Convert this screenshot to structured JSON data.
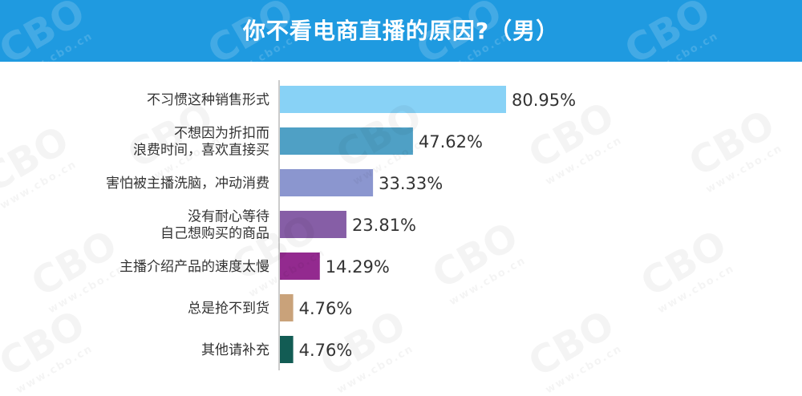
{
  "chart_data": {
    "type": "bar",
    "orientation": "horizontal",
    "title": "你不看电商直播的原因?（男）",
    "categories": [
      [
        "不习惯这种销售形式"
      ],
      [
        "不想因为折扣而",
        "浪费时间，喜欢直接买"
      ],
      [
        "害怕被主播洗脑，冲动消费"
      ],
      [
        "没有耐心等待",
        "自己想购买的商品"
      ],
      [
        "主播介绍产品的速度太慢"
      ],
      [
        "总是抢不到货"
      ],
      [
        "其他请补充"
      ]
    ],
    "values": [
      80.95,
      47.62,
      33.33,
      23.81,
      14.29,
      4.76,
      4.76
    ],
    "value_labels": [
      "80.95%",
      "47.62%",
      "33.33%",
      "23.81%",
      "14.29%",
      "4.76%",
      "4.76%"
    ],
    "colors": [
      "#88d2f6",
      "#4fa0c5",
      "#8b96cf",
      "#865ea6",
      "#932a8f",
      "#c9a27a",
      "#125c54"
    ],
    "xlim": [
      0,
      100
    ],
    "grid": false,
    "legend": "none"
  },
  "header_color": "#1f9ae0",
  "watermark": {
    "text": "CBO",
    "subtext": "www.cbo.cn"
  }
}
